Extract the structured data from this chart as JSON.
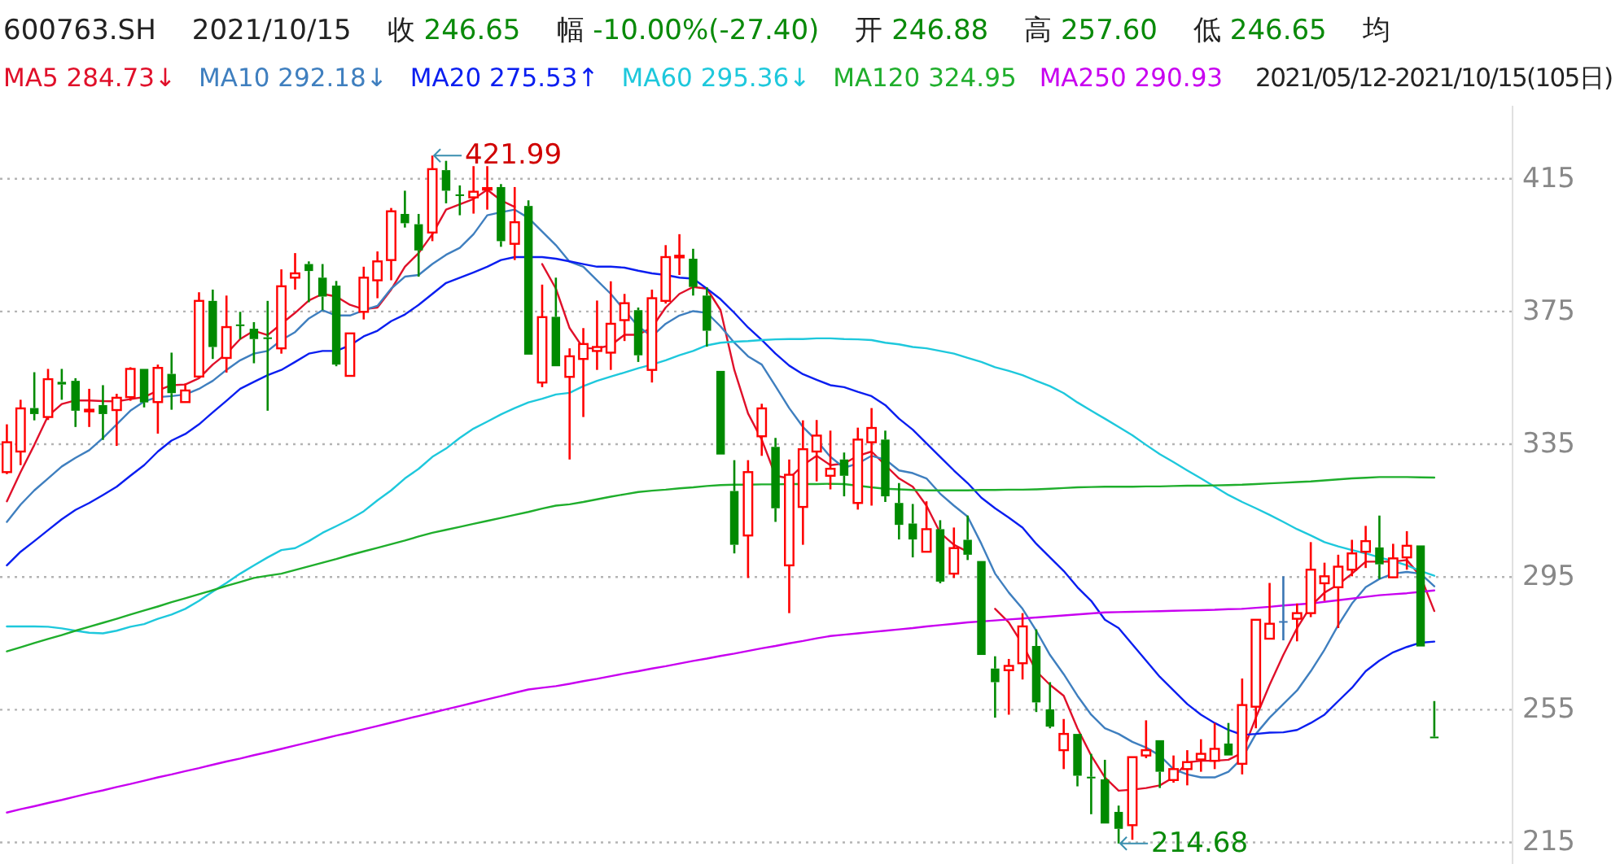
{
  "chart_data": {
    "type": "candlestick",
    "title": "600763.SH",
    "annotations": [
      "2021/10/15",
      "收 246.65",
      "幅 -10.00%(-27.40)",
      "开 246.88",
      "高 257.60",
      "低 246.65",
      "均",
      "2021/05/12-2021/10/15(105日)",
      "421.99",
      "214.68"
    ],
    "categories": [
      null,
      null,
      null,
      null,
      null,
      null,
      null,
      null,
      null,
      null,
      null,
      null,
      null,
      null,
      null,
      null,
      null,
      null,
      null,
      null,
      null,
      null,
      null,
      null,
      null,
      null,
      null,
      null,
      null,
      null,
      null,
      null,
      null,
      null,
      null,
      null,
      null,
      null,
      null,
      null,
      null,
      null,
      null,
      null,
      null,
      null,
      null,
      null,
      null,
      null,
      null,
      null,
      null,
      null,
      null,
      null,
      null,
      null,
      null,
      null,
      null,
      null,
      null,
      null,
      null,
      null,
      null,
      null,
      null,
      null,
      null,
      null,
      null,
      null,
      null,
      null,
      null,
      null,
      null,
      null,
      null,
      null,
      null,
      null,
      null,
      null,
      null,
      null,
      null,
      null,
      null,
      null,
      null,
      null,
      null,
      null,
      null,
      null,
      null,
      null,
      null,
      null,
      null,
      null,
      null
    ],
    "ohlc": [
      [
        326.6,
        341.0,
        326.0,
        335.6
      ],
      [
        332.8,
        348.4,
        328.7,
        345.8
      ],
      [
        345.9,
        356.7,
        342.2,
        344.1
      ],
      [
        343.2,
        357.7,
        342.3,
        354.6
      ],
      [
        353.8,
        357.7,
        348.4,
        353.0
      ],
      [
        354.1,
        354.9,
        340.2,
        345.1
      ],
      [
        345.1,
        351.7,
        340.2,
        345.4
      ],
      [
        346.8,
        352.8,
        336.3,
        344.1
      ],
      [
        345.3,
        350.2,
        334.5,
        349.0
      ],
      [
        349.2,
        358.2,
        348.1,
        357.7
      ],
      [
        357.7,
        357.7,
        346.1,
        347.6
      ],
      [
        347.7,
        359.0,
        338.2,
        358.0
      ],
      [
        356.2,
        362.6,
        345.4,
        350.4
      ],
      [
        347.7,
        353.3,
        347.6,
        351.2
      ],
      [
        355.4,
        380.8,
        355.4,
        378.2
      ],
      [
        378.2,
        381.6,
        360.7,
        364.3
      ],
      [
        361.0,
        379.8,
        356.6,
        370.3
      ],
      [
        371.1,
        374.9,
        366.7,
        370.8
      ],
      [
        369.8,
        371.8,
        359.4,
        366.7
      ],
      [
        367.2,
        378.2,
        345.1,
        366.9
      ],
      [
        363.9,
        387.7,
        362.3,
        382.6
      ],
      [
        385.2,
        392.6,
        381.6,
        386.5
      ],
      [
        389.3,
        390.1,
        377.8,
        387.2
      ],
      [
        385.2,
        389.3,
        375.4,
        379.5
      ],
      [
        382.8,
        384.2,
        358.5,
        359.0
      ],
      [
        355.6,
        368.4,
        355.6,
        368.4
      ],
      [
        374.9,
        388.5,
        372.6,
        385.2
      ],
      [
        384.4,
        393.1,
        379.0,
        390.1
      ],
      [
        390.5,
        406.2,
        384.4,
        405.2
      ],
      [
        404.4,
        411.4,
        400.3,
        401.6
      ],
      [
        401.3,
        404.4,
        385.5,
        393.4
      ],
      [
        398.8,
        421.99,
        396.2,
        417.9
      ],
      [
        417.6,
        420.4,
        407.6,
        411.4
      ],
      [
        410.3,
        413.0,
        404.0,
        410.1
      ],
      [
        409.4,
        418.8,
        404.5,
        411.1
      ],
      [
        411.9,
        418.8,
        405.7,
        412.2
      ],
      [
        412.5,
        413.4,
        394.5,
        396.2
      ],
      [
        395.4,
        412.5,
        390.5,
        401.9
      ],
      [
        406.8,
        408.5,
        362.0,
        362.0
      ],
      [
        353.6,
        383.1,
        352.2,
        373.3
      ],
      [
        373.4,
        385.2,
        358.5,
        358.5
      ],
      [
        355.3,
        363.9,
        330.4,
        361.5
      ],
      [
        360.7,
        370.0,
        343.2,
        365.2
      ],
      [
        363.1,
        378.3,
        357.4,
        364.3
      ],
      [
        362.6,
        384.1,
        357.4,
        371.3
      ],
      [
        372.4,
        380.3,
        366.1,
        377.5
      ],
      [
        375.4,
        376.2,
        359.8,
        361.8
      ],
      [
        357.4,
        381.6,
        353.6,
        379.0
      ],
      [
        378.2,
        395.0,
        377.4,
        391.4
      ],
      [
        391.6,
        398.3,
        386.0,
        391.8
      ],
      [
        390.9,
        393.9,
        379.8,
        382.4
      ],
      [
        379.8,
        382.3,
        364.4,
        369.2
      ],
      [
        357.1,
        357.1,
        331.9,
        331.9
      ],
      [
        320.9,
        330.2,
        302.1,
        304.7
      ],
      [
        307.5,
        330.2,
        294.7,
        326.6
      ],
      [
        337.4,
        347.2,
        331.5,
        345.8
      ],
      [
        334.2,
        336.9,
        311.6,
        315.7
      ],
      [
        298.5,
        330.4,
        284.1,
        325.8
      ],
      [
        316.1,
        342.2,
        304.7,
        333.5
      ],
      [
        332.8,
        342.3,
        323.8,
        337.6
      ],
      [
        325.5,
        339.1,
        321.4,
        327.6
      ],
      [
        330.4,
        332.5,
        319.3,
        325.5
      ],
      [
        317.3,
        340.0,
        315.3,
        336.4
      ],
      [
        335.6,
        345.9,
        316.5,
        339.9
      ],
      [
        336.4,
        339.1,
        317.6,
        319.3
      ],
      [
        317.3,
        323.3,
        306.3,
        310.7
      ],
      [
        311.1,
        317.0,
        300.9,
        306.3
      ],
      [
        302.6,
        317.8,
        302.6,
        309.4
      ],
      [
        309.4,
        312.1,
        293.1,
        293.6
      ],
      [
        296.0,
        309.9,
        294.7,
        303.7
      ],
      [
        306.2,
        313.5,
        300.1,
        301.7
      ],
      [
        299.8,
        299.8,
        271.5,
        271.5
      ],
      [
        267.4,
        271.1,
        252.6,
        263.3
      ],
      [
        266.9,
        270.3,
        253.5,
        268.2
      ],
      [
        269.0,
        284.1,
        264.1,
        280.1
      ],
      [
        274.2,
        279.2,
        254.3,
        257.2
      ],
      [
        255.1,
        263.3,
        249.4,
        249.9
      ],
      [
        242.8,
        252.2,
        237.1,
        247.7
      ],
      [
        247.7,
        247.7,
        231.9,
        235.1
      ],
      [
        234.8,
        241.7,
        223.5,
        234.3
      ],
      [
        234.0,
        239.9,
        220.7,
        220.7
      ],
      [
        224.2,
        226.1,
        214.68,
        219.1
      ],
      [
        220.2,
        240.7,
        215.8,
        240.7
      ],
      [
        241.2,
        251.8,
        240.4,
        242.8
      ],
      [
        245.8,
        245.8,
        231.4,
        236.3
      ],
      [
        233.8,
        241.2,
        233.0,
        237.1
      ],
      [
        237.1,
        242.8,
        232.2,
        239.2
      ],
      [
        240.0,
        246.1,
        236.3,
        241.7
      ],
      [
        239.6,
        251.0,
        237.1,
        243.2
      ],
      [
        244.8,
        251.0,
        241.2,
        241.2
      ],
      [
        238.7,
        264.4,
        235.5,
        256.4
      ],
      [
        255.9,
        282.1,
        249.4,
        282.1
      ],
      [
        276.4,
        293.2,
        276.4,
        280.9
      ],
      [
        281.7,
        295.2,
        275.9,
        281.7
      ],
      [
        282.4,
        287.0,
        275.6,
        284.1
      ],
      [
        284.1,
        305.5,
        282.9,
        297.2
      ],
      [
        293.1,
        299.3,
        287.8,
        295.2
      ],
      [
        291.9,
        301.7,
        279.6,
        298.1
      ],
      [
        297.2,
        306.2,
        295.2,
        302.1
      ],
      [
        302.6,
        310.4,
        297.7,
        305.8
      ],
      [
        303.9,
        313.5,
        294.4,
        298.8
      ],
      [
        294.9,
        305.0,
        294.9,
        300.6
      ],
      [
        300.9,
        308.8,
        297.2,
        304.4
      ],
      [
        304.5,
        304.5,
        274.05,
        274.05
      ],
      [
        246.88,
        257.6,
        246.65,
        246.65
      ]
    ],
    "colors": [
      "#ff0000",
      "#ff0000",
      "#008a00",
      "#ff0000",
      "#008a00",
      "#008a00",
      "#ff0000",
      "#008a00",
      "#ff0000",
      "#ff0000",
      "#008a00",
      "#ff0000",
      "#008a00",
      "#ff0000",
      "#ff0000",
      "#008a00",
      "#ff0000",
      "#008a00",
      "#008a00",
      "#008a00",
      "#ff0000",
      "#ff0000",
      "#008a00",
      "#008a00",
      "#008a00",
      "#ff0000",
      "#ff0000",
      "#ff0000",
      "#ff0000",
      "#008a00",
      "#008a00",
      "#ff0000",
      "#008a00",
      "#008a00",
      "#ff0000",
      "#ff0000",
      "#008a00",
      "#ff0000",
      "#008a00",
      "#ff0000",
      "#008a00",
      "#ff0000",
      "#ff0000",
      "#ff0000",
      "#ff0000",
      "#ff0000",
      "#008a00",
      "#ff0000",
      "#ff0000",
      "#ff0000",
      "#008a00",
      "#008a00",
      "#008a00",
      "#008a00",
      "#ff0000",
      "#ff0000",
      "#008a00",
      "#ff0000",
      "#ff0000",
      "#ff0000",
      "#ff0000",
      "#008a00",
      "#ff0000",
      "#ff0000",
      "#008a00",
      "#008a00",
      "#008a00",
      "#ff0000",
      "#008a00",
      "#ff0000",
      "#008a00",
      "#008a00",
      "#008a00",
      "#ff0000",
      "#ff0000",
      "#008a00",
      "#008a00",
      "#ff0000",
      "#008a00",
      "#008a00",
      "#008a00",
      "#008a00",
      "#ff0000",
      "#ff0000",
      "#008a00",
      "#ff0000",
      "#ff0000",
      "#ff0000",
      "#ff0000",
      "#008a00",
      "#ff0000",
      "#ff0000",
      "#ff0000",
      "#3a76b4",
      "#ff0000",
      "#ff0000",
      "#ff0000",
      "#ff0000",
      "#ff0000",
      "#ff0000",
      "#008a00",
      "#ff0000",
      "#ff0000",
      "#008a00",
      "#008a00"
    ],
    "series": [
      {
        "name": "MA5 284.73↓",
        "type": "line",
        "color": "#e0102a",
        "values": [
          317.8,
          326.6,
          334.8,
          343.5,
          347.1,
          348.2,
          348.2,
          348.0,
          347.9,
          348.6,
          349.2,
          351.2,
          352.8,
          353.0,
          354.9,
          359.0,
          362.3,
          366.7,
          369.2,
          367.9,
          371.3,
          374.6,
          378.3,
          380.3,
          379.5,
          377.0,
          375.7,
          376.2,
          381.6,
          388.5,
          392.6,
          398.3,
          405.7,
          407.3,
          408.9,
          411.7,
          408.5,
          406.5,
          null,
          389.3,
          381.9,
          370.0,
          363.9,
          363.9,
          364.8,
          368.0,
          368.0,
          370.2,
          376.2,
          380.3,
          382.4,
          381.9,
          375.4,
          357.4,
          344.3,
          336.4,
          325.5,
          324.7,
          328.7,
          331.5,
          328.7,
          329.2,
          331.5,
          332.8,
          328.7,
          324.7,
          322.2,
          316.5,
          308.3,
          304.7,
          302.6,
          null,
          285.4,
          281.3,
          274.7,
          266.6,
          262.5,
          259.2,
          249.4,
          241.2,
          234.6,
          230.6,
          230.9,
          231.4,
          232.2,
          234.6,
          239.1,
          239.6,
          239.6,
          239.9,
          242.0,
          252.6,
          262.5,
          271.5,
          279.6,
          286.2,
          290.3,
          292.7,
          296.0,
          299.6,
          299.6,
          299.6,
          300.1,
          295.2,
          284.73
        ]
      },
      {
        "name": "MA10 292.18↓",
        "type": "line",
        "color": "#3f7fbf",
        "values": [
          311.6,
          316.8,
          321.1,
          324.7,
          328.3,
          330.9,
          333.2,
          336.9,
          341.0,
          345.1,
          347.9,
          349.2,
          349.5,
          350.0,
          351.7,
          354.1,
          357.4,
          360.3,
          362.3,
          363.1,
          366.4,
          368.8,
          372.9,
          375.4,
          373.8,
          373.8,
          375.4,
          376.7,
          381.9,
          385.5,
          386.0,
          389.3,
          392.1,
          394.2,
          398.3,
          404.0,
          404.9,
          405.7,
          403.2,
          399.1,
          395.0,
          390.0,
          388.5,
          384.4,
          380.3,
          375.4,
          370.5,
          367.5,
          371.3,
          373.8,
          375.1,
          374.6,
          370.5,
          365.6,
          361.5,
          359.0,
          352.5,
          345.9,
          340.2,
          336.1,
          331.2,
          327.9,
          329.2,
          331.5,
          330.4,
          327.1,
          326.3,
          324.7,
          320.1,
          316.5,
          313.2,
          305.0,
          296.0,
          290.3,
          285.4,
          278.8,
          271.5,
          265.7,
          259.2,
          253.5,
          249.4,
          247.7,
          245.3,
          243.6,
          241.2,
          237.1,
          235.5,
          234.6,
          234.6,
          236.3,
          240.4,
          247.7,
          252.6,
          256.7,
          260.8,
          266.6,
          273.1,
          280.5,
          287.0,
          291.9,
          294.4,
          296.0,
          296.5,
          296.0,
          292.18
        ]
      },
      {
        "name": "MA20 275.53↑",
        "type": "line",
        "color": "#0a1ef0",
        "values": [
          298.5,
          302.6,
          305.8,
          309.1,
          312.4,
          315.2,
          317.3,
          319.7,
          322.2,
          325.5,
          328.7,
          332.8,
          336.1,
          338.1,
          341.0,
          344.6,
          348.1,
          351.7,
          353.8,
          355.8,
          357.4,
          359.8,
          362.3,
          363.1,
          363.1,
          364.8,
          367.5,
          369.2,
          372.1,
          374.1,
          377.0,
          380.3,
          383.6,
          385.2,
          386.8,
          388.5,
          390.5,
          391.4,
          391.4,
          391.4,
          390.9,
          390.1,
          389.3,
          388.5,
          388.5,
          388.2,
          387.3,
          386.5,
          386.0,
          385.2,
          384.9,
          381.9,
          378.7,
          374.6,
          370.2,
          366.4,
          362.3,
          358.7,
          356.1,
          354.4,
          352.8,
          352.2,
          350.8,
          349.5,
          346.8,
          342.7,
          339.4,
          335.3,
          331.2,
          327.1,
          323.3,
          318.9,
          315.7,
          312.9,
          309.9,
          305.0,
          300.9,
          296.8,
          291.9,
          287.8,
          282.1,
          279.6,
          274.7,
          269.8,
          264.9,
          260.8,
          256.7,
          253.5,
          251.0,
          248.9,
          247.4,
          247.7,
          248.1,
          248.2,
          248.9,
          251.0,
          253.5,
          257.6,
          261.6,
          266.6,
          269.8,
          272.3,
          273.9,
          275.2,
          275.53
        ]
      },
      {
        "name": "MA60 295.36↓",
        "type": "line",
        "color": "#1ec8dc",
        "values": [
          280.1,
          280.1,
          280.1,
          280.0,
          279.5,
          278.8,
          278.2,
          278.0,
          278.8,
          280.0,
          280.8,
          282.4,
          283.7,
          285.4,
          287.8,
          290.6,
          293.2,
          296.0,
          298.5,
          300.9,
          303.1,
          303.7,
          305.8,
          308.3,
          310.3,
          312.4,
          314.8,
          318.1,
          321.1,
          324.7,
          327.6,
          331.2,
          333.7,
          336.9,
          339.7,
          341.8,
          344.0,
          345.9,
          347.6,
          348.7,
          350.0,
          350.5,
          352.5,
          354.1,
          355.4,
          356.6,
          357.9,
          359.0,
          360.3,
          361.8,
          363.1,
          364.8,
          365.6,
          365.9,
          366.1,
          366.4,
          366.6,
          366.7,
          366.7,
          366.9,
          366.9,
          366.7,
          366.6,
          366.4,
          365.6,
          365.1,
          364.3,
          363.9,
          363.1,
          362.3,
          361.0,
          359.8,
          358.2,
          357.1,
          355.8,
          354.1,
          352.5,
          350.4,
          347.6,
          345.1,
          342.7,
          340.2,
          337.7,
          334.8,
          332.0,
          329.6,
          327.1,
          324.7,
          322.2,
          319.7,
          317.6,
          315.7,
          313.7,
          311.6,
          309.4,
          307.5,
          305.5,
          304.2,
          303.1,
          302.1,
          300.9,
          299.8,
          298.5,
          296.8,
          295.36
        ]
      },
      {
        "name": "MA120 324.95",
        "type": "line",
        "color": "#1fae2c",
        "values": [
          272.6,
          273.8,
          275.1,
          276.3,
          277.5,
          278.8,
          280.0,
          281.2,
          282.4,
          283.7,
          284.9,
          286.1,
          287.4,
          288.6,
          289.8,
          291.0,
          292.3,
          293.5,
          294.7,
          295.4,
          296.0,
          297.1,
          298.2,
          299.3,
          300.4,
          301.6,
          302.7,
          303.8,
          304.9,
          306.0,
          307.2,
          308.3,
          309.2,
          310.1,
          311.0,
          311.9,
          312.8,
          313.7,
          314.6,
          315.6,
          316.5,
          316.9,
          317.6,
          318.4,
          319.2,
          319.9,
          320.6,
          321.0,
          321.3,
          321.7,
          322.0,
          322.4,
          322.7,
          322.8,
          322.8,
          322.9,
          322.9,
          323.0,
          323.0,
          323.0,
          323.1,
          323.0,
          322.5,
          322.0,
          321.6,
          321.4,
          321.2,
          321.1,
          321.1,
          321.1,
          321.1,
          321.2,
          321.2,
          321.3,
          321.3,
          321.4,
          321.6,
          321.8,
          322.0,
          322.1,
          322.2,
          322.2,
          322.2,
          322.3,
          322.3,
          322.4,
          322.5,
          322.5,
          322.6,
          322.7,
          322.8,
          323.0,
          323.2,
          323.4,
          323.6,
          323.8,
          324.1,
          324.4,
          324.7,
          324.9,
          325.1,
          325.1,
          325.1,
          325.0,
          324.95
        ]
      },
      {
        "name": "MA250 290.93",
        "type": "line",
        "color": "#c800f0",
        "values": [
          224.0,
          225.0,
          225.9,
          226.9,
          227.8,
          228.8,
          229.8,
          230.7,
          231.7,
          232.6,
          233.6,
          234.6,
          235.5,
          236.5,
          237.4,
          238.4,
          239.4,
          240.3,
          241.3,
          242.2,
          243.2,
          244.2,
          245.2,
          246.2,
          247.2,
          248.1,
          249.1,
          250.1,
          251.1,
          252.1,
          253.1,
          254.1,
          255.1,
          256.1,
          257.1,
          258.1,
          259.1,
          260.1,
          261.1,
          261.6,
          262.1,
          262.8,
          263.6,
          264.3,
          265.1,
          265.9,
          266.6,
          267.4,
          268.1,
          268.9,
          269.7,
          270.4,
          271.2,
          271.9,
          272.7,
          273.5,
          274.2,
          275.0,
          275.7,
          276.5,
          277.2,
          277.6,
          278.0,
          278.4,
          278.8,
          279.2,
          279.6,
          280.1,
          280.5,
          280.9,
          281.3,
          281.6,
          281.9,
          282.2,
          282.5,
          282.8,
          283.1,
          283.4,
          283.7,
          284.0,
          284.3,
          284.4,
          284.5,
          284.6,
          284.7,
          284.8,
          284.9,
          285.0,
          285.1,
          285.3,
          285.4,
          285.7,
          286.0,
          286.4,
          286.7,
          287.0,
          287.5,
          288.0,
          288.5,
          289.0,
          289.5,
          289.8,
          290.1,
          290.5,
          290.93
        ]
      }
    ],
    "ylim": [
      208.5,
      437
    ],
    "yticks": [
      415,
      375,
      335,
      295,
      255,
      215
    ],
    "grid": "y",
    "legend": "top left"
  }
}
